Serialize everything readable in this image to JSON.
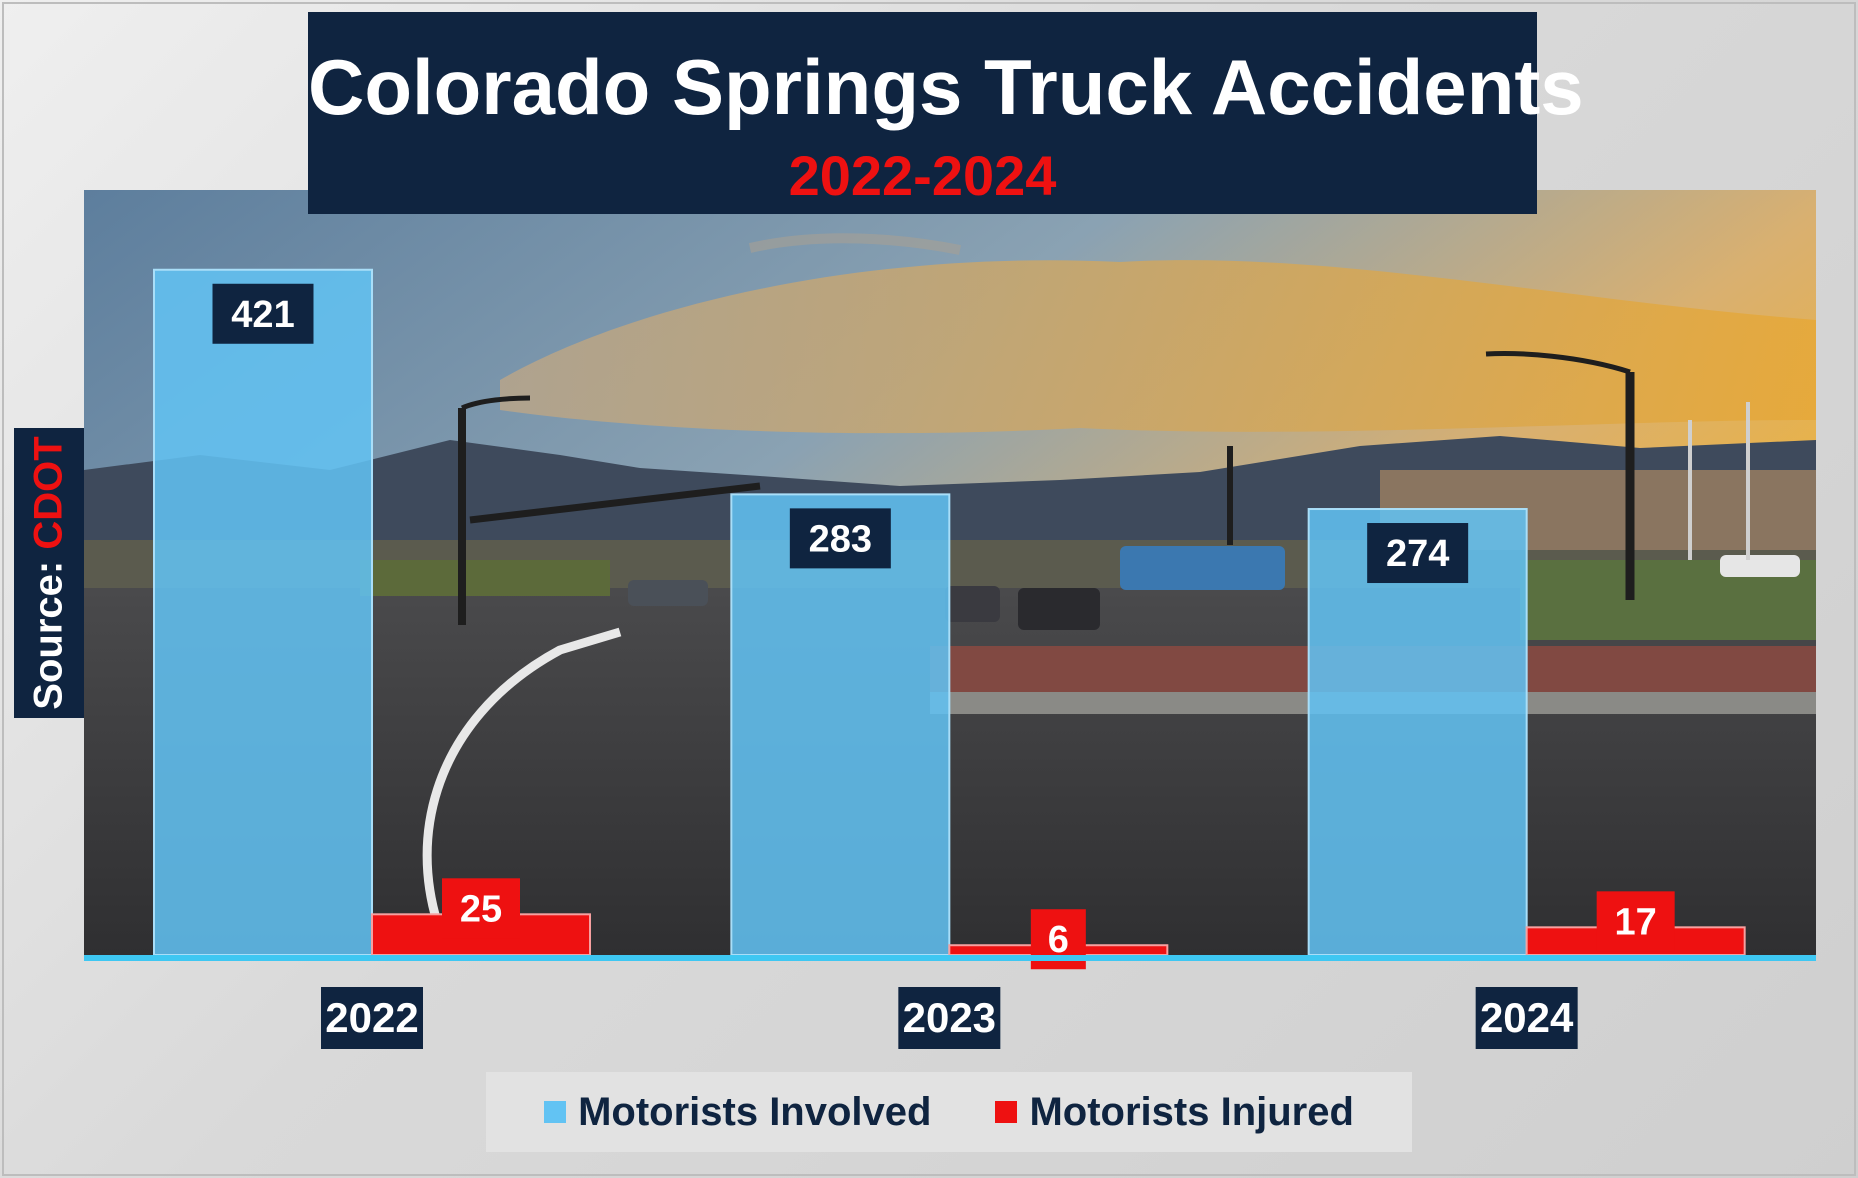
{
  "chart_data": {
    "type": "bar",
    "title": "Colorado Springs Truck Accidents",
    "subtitle": "2022-2024",
    "source_label": "Source:",
    "source_value": "CDOT",
    "categories": [
      "2022",
      "2023",
      "2024"
    ],
    "series": [
      {
        "name": "Motorists Involved",
        "values": [
          421,
          283,
          274
        ],
        "color": "#62c3f3"
      },
      {
        "name": "Motorists Injured",
        "values": [
          25,
          6,
          17
        ],
        "color": "#ee1111"
      }
    ],
    "ylim": [
      0,
      470
    ],
    "grid": false,
    "legend_position": "bottom",
    "background": "photo of road intersection at sunset with mountains"
  },
  "colors": {
    "title_box": "#0f2440",
    "title_text": "#ffffff",
    "subtitle_text": "#ee1111",
    "axis_line": "#3ec7f2"
  }
}
